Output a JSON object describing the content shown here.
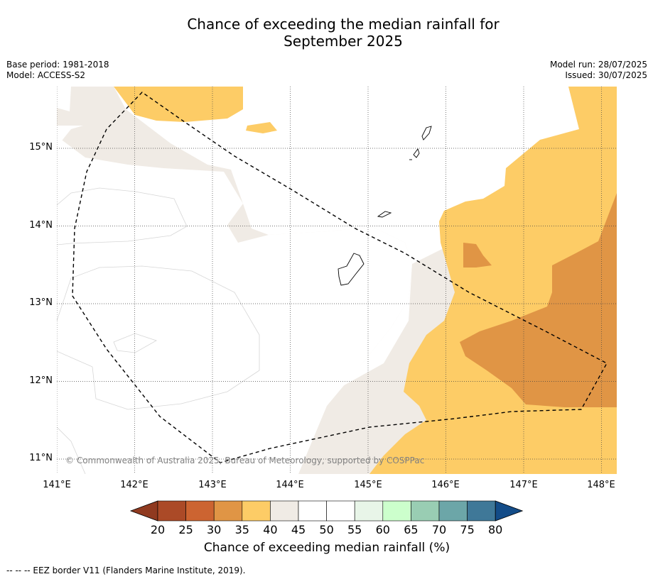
{
  "header": {
    "title_line1": "Chance of exceeding the median rainfall for",
    "title_line2": "September 2025",
    "base_period": "Base period: 1981-2018",
    "model": "Model: ACCESS-S2",
    "model_run": "Model run: 28/07/2025",
    "issued": "Issued: 30/07/2025"
  },
  "map": {
    "latitude_labels": [
      "15°N",
      "14°N",
      "13°N",
      "12°N",
      "11°N"
    ],
    "longitude_labels": [
      "141°E",
      "142°E",
      "143°E",
      "144°E",
      "145°E",
      "146°E",
      "147°E",
      "148°E"
    ],
    "copyright": "© Commonwealth of Australia 2025, Bureau of Meteorology, supported by COSPPac",
    "colors": {
      "pct_30_35": "#e09545",
      "pct_35_40": "#fdcc66",
      "pct_40_45": "#f0ebe5",
      "pct_45_55": "#ffffff",
      "contour": "#d6d6d6",
      "eez_border": "#000000",
      "land": "#ffffff"
    }
  },
  "colorbar": {
    "ticks": [
      "20",
      "25",
      "30",
      "35",
      "40",
      "45",
      "50",
      "55",
      "60",
      "65",
      "70",
      "75",
      "80"
    ],
    "colors": [
      "#ab4a27",
      "#cc6431",
      "#e09545",
      "#fdcc66",
      "#f0ebe5",
      "#ffffff",
      "#ffffff",
      "#e8f5e8",
      "#ccffcc",
      "#99cdb3",
      "#6ca6a8",
      "#3f7898"
    ],
    "under_color": "#903a20",
    "over_color": "#134c88",
    "label": "Chance of exceeding median rainfall (%)"
  },
  "footnote": "--  --  -- EEZ border V11 (Flanders Marine Institute, 2019)."
}
